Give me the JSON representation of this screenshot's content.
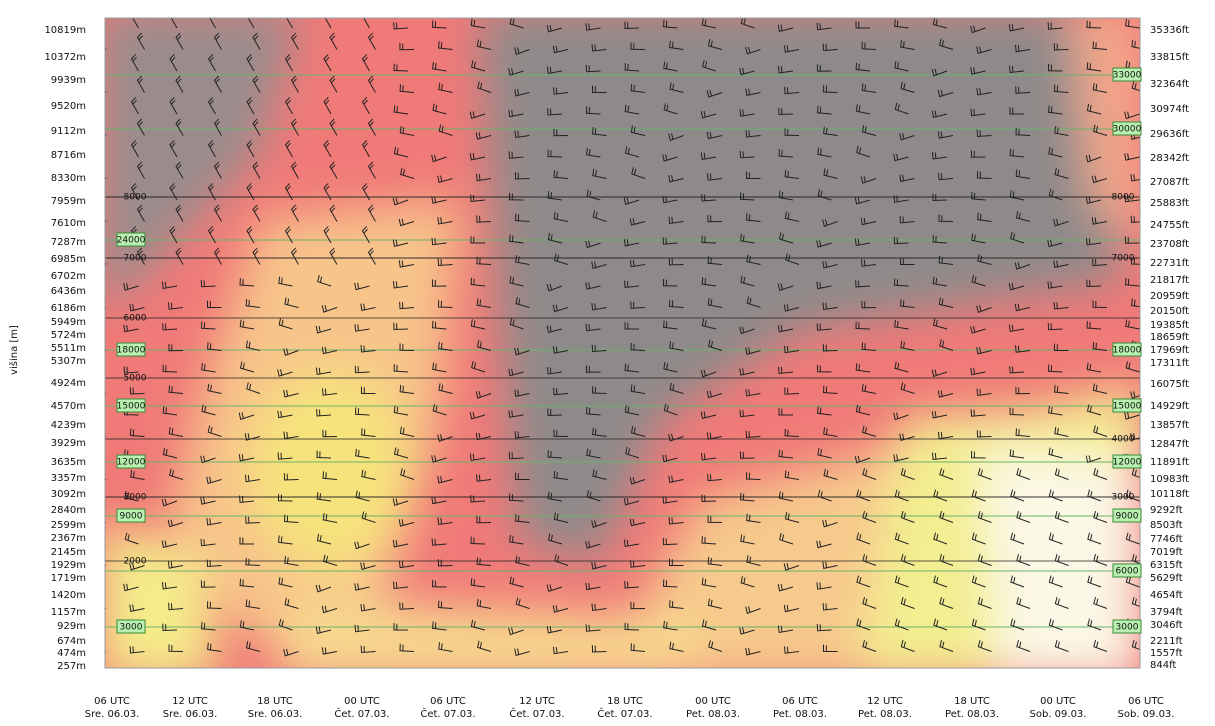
{
  "y_axis_title": "višina [m]",
  "left_labels": [
    "10819m",
    "10372m",
    "9939m",
    "9520m",
    "9112m",
    "8716m",
    "8330m",
    "7959m",
    "7610m",
    "7287m",
    "6985m",
    "6702m",
    "6436m",
    "6186m",
    "5949m",
    "5724m",
    "5511m",
    "5307m",
    "4924m",
    "4570m",
    "4239m",
    "3929m",
    "3635m",
    "3357m",
    "3092m",
    "2840m",
    "2599m",
    "2367m",
    "2145m",
    "1929m",
    "1719m",
    "1420m",
    "1157m",
    "929m",
    "674m",
    "474m",
    "257m"
  ],
  "right_labels": [
    "35336ft",
    "33815ft",
    "32364ft",
    "30974ft",
    "29636ft",
    "28342ft",
    "27087ft",
    "25883ft",
    "24755ft",
    "23708ft",
    "22731ft",
    "21817ft",
    "20959ft",
    "20150ft",
    "19385ft",
    "18659ft",
    "17969ft",
    "17311ft",
    "16075ft",
    "14929ft",
    "13857ft",
    "12847ft",
    "11891ft",
    "10983ft",
    "10118ft",
    "9292ft",
    "8503ft",
    "7746ft",
    "7019ft",
    "6315ft",
    "5629ft",
    "4654ft",
    "3794ft",
    "3046ft",
    "2211ft",
    "1557ft",
    "844ft"
  ],
  "x_labels": [
    {
      "time": "06 UTC",
      "date": "Sre. 06.03."
    },
    {
      "time": "12 UTC",
      "date": "Sre. 06.03."
    },
    {
      "time": "18 UTC",
      "date": "Sre. 06.03."
    },
    {
      "time": "00 UTC",
      "date": "Čet. 07.03."
    },
    {
      "time": "06 UTC",
      "date": "Čet. 07.03."
    },
    {
      "time": "12 UTC",
      "date": "Čet. 07.03."
    },
    {
      "time": "18 UTC",
      "date": "Čet. 07.03."
    },
    {
      "time": "00 UTC",
      "date": "Pet. 08.03."
    },
    {
      "time": "06 UTC",
      "date": "Pet. 08.03."
    },
    {
      "time": "12 UTC",
      "date": "Pet. 08.03."
    },
    {
      "time": "18 UTC",
      "date": "Pet. 08.03."
    },
    {
      "time": "00 UTC",
      "date": "Sob. 09.03."
    },
    {
      "time": "06 UTC",
      "date": "Sob. 09.03."
    }
  ],
  "flight_levels_left": [
    "24000",
    "18000",
    "15000",
    "12000",
    "9000",
    "3000"
  ],
  "flight_levels_right": [
    "33000",
    "30000",
    "18000",
    "15000",
    "12000",
    "9000",
    "6000",
    "3000"
  ],
  "contours_left": [
    "8000",
    "7000",
    "6000",
    "5000",
    "3000",
    "2000"
  ],
  "contours_right": [
    "8000",
    "7000",
    "4000",
    "3000"
  ]
}
